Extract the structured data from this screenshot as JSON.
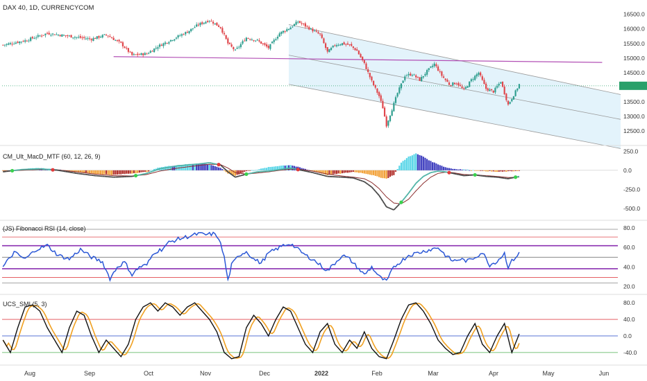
{
  "header": {
    "title": "DAX 40, 1D, CURRENCYCOM"
  },
  "colors": {
    "up": "#2f9e8f",
    "down": "#e0474c",
    "channel_fill": "#e3f3fb",
    "channel_line": "#9a9a9a",
    "support_line": "#b24fb5",
    "macd_line": "#4a4a4a",
    "signal_line": "#8b2d2d",
    "rsi_line": "#2a57d6",
    "smi_line": "#111111",
    "smi_signal": "#f0a020"
  },
  "chart_data": [
    {
      "type": "candlestick",
      "title": "DAX 40, 1D, CURRENCYCOM",
      "ylim": [
        12100,
        16800
      ],
      "y_ticks": [
        "16500.0",
        "16000.0",
        "15500.0",
        "15000.0",
        "14500.0",
        "14000.0",
        "13500.0",
        "13000.0",
        "12500.0"
      ],
      "x_ticks": [
        "Aug",
        "Sep",
        "Oct",
        "Nov",
        "Dec",
        "2022",
        "Feb",
        "Mar",
        "Apr",
        "May",
        "Jun"
      ],
      "anchors": [
        [
          0,
          15450
        ],
        [
          12,
          15600
        ],
        [
          24,
          15850
        ],
        [
          36,
          15750
        ],
        [
          48,
          15650
        ],
        [
          56,
          15800
        ],
        [
          64,
          15500
        ],
        [
          70,
          15100
        ],
        [
          78,
          15150
        ],
        [
          84,
          15400
        ],
        [
          92,
          15650
        ],
        [
          100,
          15900
        ],
        [
          106,
          16150
        ],
        [
          112,
          16300
        ],
        [
          118,
          16050
        ],
        [
          122,
          15500
        ],
        [
          126,
          15250
        ],
        [
          132,
          15700
        ],
        [
          138,
          15600
        ],
        [
          144,
          15350
        ],
        [
          150,
          15850
        ],
        [
          156,
          16050
        ],
        [
          160,
          16250
        ],
        [
          164,
          16100
        ],
        [
          168,
          15950
        ],
        [
          172,
          15800
        ],
        [
          176,
          15200
        ],
        [
          180,
          15450
        ],
        [
          184,
          15500
        ],
        [
          188,
          15450
        ],
        [
          192,
          15250
        ],
        [
          196,
          14800
        ],
        [
          200,
          14200
        ],
        [
          204,
          13700
        ],
        [
          206,
          13300
        ],
        [
          208,
          12700
        ],
        [
          211,
          13250
        ],
        [
          214,
          13800
        ],
        [
          218,
          14400
        ],
        [
          222,
          14450
        ],
        [
          226,
          14250
        ],
        [
          230,
          14550
        ],
        [
          234,
          14800
        ],
        [
          238,
          14400
        ],
        [
          242,
          14100
        ],
        [
          246,
          14150
        ],
        [
          250,
          13900
        ],
        [
          254,
          14250
        ],
        [
          258,
          14500
        ],
        [
          262,
          13950
        ],
        [
          266,
          13850
        ],
        [
          270,
          14200
        ],
        [
          272,
          13800
        ],
        [
          274,
          13400
        ],
        [
          278,
          13850
        ],
        [
          280,
          14100
        ]
      ],
      "current_price": 14050,
      "channel": {
        "start_index": 155,
        "end_index": 335,
        "upper": [
          16150,
          13750
        ],
        "middle": [
          15100,
          12900
        ],
        "lower": [
          14100,
          11900
        ]
      },
      "support_line": {
        "start_index": 60,
        "end_index": 325,
        "values": [
          15050,
          14850
        ]
      },
      "bars_count": 281,
      "x_max_index": 334
    },
    {
      "type": "macd_histogram",
      "title": "CM_Ult_MacD_MTF (60, 12, 26, 9)",
      "ylim": [
        -620,
        290
      ],
      "y_ticks": [
        "250.0",
        "0.0",
        "-250.0",
        "-500.0"
      ],
      "hist_anchors": [
        [
          0,
          -10
        ],
        [
          10,
          15
        ],
        [
          20,
          30
        ],
        [
          30,
          10
        ],
        [
          40,
          -25
        ],
        [
          50,
          -45
        ],
        [
          60,
          -60
        ],
        [
          70,
          -40
        ],
        [
          78,
          -20
        ],
        [
          85,
          40
        ],
        [
          95,
          70
        ],
        [
          105,
          90
        ],
        [
          112,
          80
        ],
        [
          118,
          30
        ],
        [
          122,
          -40
        ],
        [
          126,
          -70
        ],
        [
          132,
          -10
        ],
        [
          138,
          10
        ],
        [
          144,
          40
        ],
        [
          150,
          60
        ],
        [
          156,
          70
        ],
        [
          162,
          30
        ],
        [
          168,
          -10
        ],
        [
          176,
          -60
        ],
        [
          184,
          -40
        ],
        [
          190,
          -20
        ],
        [
          196,
          -40
        ],
        [
          200,
          -60
        ],
        [
          204,
          -90
        ],
        [
          208,
          -110
        ],
        [
          212,
          -60
        ],
        [
          216,
          100
        ],
        [
          220,
          180
        ],
        [
          224,
          220
        ],
        [
          228,
          180
        ],
        [
          232,
          120
        ],
        [
          236,
          80
        ],
        [
          240,
          40
        ],
        [
          244,
          20
        ],
        [
          250,
          10
        ],
        [
          256,
          0
        ],
        [
          262,
          -10
        ],
        [
          268,
          -20
        ],
        [
          274,
          -15
        ],
        [
          280,
          -5
        ]
      ],
      "macd_anchors": [
        [
          0,
          -20
        ],
        [
          10,
          10
        ],
        [
          20,
          20
        ],
        [
          30,
          0
        ],
        [
          40,
          -40
        ],
        [
          50,
          -70
        ],
        [
          60,
          -90
        ],
        [
          70,
          -80
        ],
        [
          78,
          -40
        ],
        [
          85,
          20
        ],
        [
          95,
          60
        ],
        [
          105,
          80
        ],
        [
          112,
          100
        ],
        [
          118,
          70
        ],
        [
          122,
          -20
        ],
        [
          126,
          -90
        ],
        [
          132,
          -50
        ],
        [
          138,
          -20
        ],
        [
          144,
          -10
        ],
        [
          150,
          10
        ],
        [
          156,
          30
        ],
        [
          162,
          0
        ],
        [
          168,
          -30
        ],
        [
          176,
          -80
        ],
        [
          184,
          -90
        ],
        [
          190,
          -100
        ],
        [
          196,
          -150
        ],
        [
          200,
          -220
        ],
        [
          204,
          -330
        ],
        [
          208,
          -480
        ],
        [
          212,
          -520
        ],
        [
          216,
          -420
        ],
        [
          220,
          -300
        ],
        [
          224,
          -170
        ],
        [
          228,
          -80
        ],
        [
          232,
          -30
        ],
        [
          236,
          -10
        ],
        [
          240,
          -20
        ],
        [
          244,
          -40
        ],
        [
          250,
          -70
        ],
        [
          256,
          -60
        ],
        [
          262,
          -80
        ],
        [
          268,
          -90
        ],
        [
          274,
          -110
        ],
        [
          280,
          -80
        ]
      ],
      "signal_anchors": [
        [
          0,
          -10
        ],
        [
          10,
          0
        ],
        [
          20,
          10
        ],
        [
          30,
          5
        ],
        [
          40,
          -20
        ],
        [
          50,
          -50
        ],
        [
          60,
          -70
        ],
        [
          70,
          -75
        ],
        [
          78,
          -55
        ],
        [
          85,
          -10
        ],
        [
          95,
          30
        ],
        [
          105,
          60
        ],
        [
          112,
          80
        ],
        [
          118,
          75
        ],
        [
          122,
          30
        ],
        [
          126,
          -30
        ],
        [
          132,
          -50
        ],
        [
          138,
          -35
        ],
        [
          144,
          -20
        ],
        [
          150,
          0
        ],
        [
          156,
          15
        ],
        [
          162,
          10
        ],
        [
          168,
          -10
        ],
        [
          176,
          -50
        ],
        [
          184,
          -75
        ],
        [
          190,
          -90
        ],
        [
          196,
          -110
        ],
        [
          200,
          -160
        ],
        [
          204,
          -240
        ],
        [
          208,
          -350
        ],
        [
          212,
          -430
        ],
        [
          216,
          -440
        ],
        [
          220,
          -380
        ],
        [
          224,
          -270
        ],
        [
          228,
          -170
        ],
        [
          232,
          -90
        ],
        [
          236,
          -40
        ],
        [
          240,
          -25
        ],
        [
          244,
          -30
        ],
        [
          250,
          -55
        ],
        [
          256,
          -60
        ],
        [
          262,
          -70
        ],
        [
          268,
          -80
        ],
        [
          274,
          -95
        ],
        [
          280,
          -90
        ]
      ]
    },
    {
      "type": "line",
      "title": "(JS) Fibonacci RSI (14, close)",
      "ylim": [
        14,
        85
      ],
      "y_ticks": [
        "80.0",
        "60.0",
        "40.0",
        "20.0"
      ],
      "levels": [
        {
          "value": 78.6,
          "color": "#888888"
        },
        {
          "value": 70.7,
          "color": "#e0474c"
        },
        {
          "value": 61.8,
          "color": "#8a2fb0"
        },
        {
          "value": 50,
          "color": "#777777"
        },
        {
          "value": 38.2,
          "color": "#8a2fb0"
        },
        {
          "value": 29.3,
          "color": "#e0474c"
        },
        {
          "value": 23.6,
          "color": "#888888"
        }
      ],
      "anchors": [
        [
          0,
          40
        ],
        [
          6,
          55
        ],
        [
          12,
          48
        ],
        [
          18,
          58
        ],
        [
          24,
          62
        ],
        [
          30,
          52
        ],
        [
          36,
          48
        ],
        [
          42,
          58
        ],
        [
          48,
          50
        ],
        [
          54,
          45
        ],
        [
          58,
          28
        ],
        [
          62,
          40
        ],
        [
          66,
          45
        ],
        [
          70,
          32
        ],
        [
          74,
          40
        ],
        [
          78,
          42
        ],
        [
          82,
          55
        ],
        [
          86,
          58
        ],
        [
          90,
          65
        ],
        [
          94,
          68
        ],
        [
          98,
          70
        ],
        [
          102,
          72
        ],
        [
          106,
          74
        ],
        [
          110,
          73
        ],
        [
          114,
          74
        ],
        [
          117,
          70
        ],
        [
          120,
          50
        ],
        [
          122,
          26
        ],
        [
          124,
          42
        ],
        [
          128,
          52
        ],
        [
          132,
          56
        ],
        [
          136,
          48
        ],
        [
          140,
          44
        ],
        [
          144,
          54
        ],
        [
          148,
          58
        ],
        [
          152,
          62
        ],
        [
          156,
          64
        ],
        [
          160,
          58
        ],
        [
          164,
          52
        ],
        [
          168,
          48
        ],
        [
          172,
          42
        ],
        [
          176,
          36
        ],
        [
          180,
          44
        ],
        [
          184,
          52
        ],
        [
          188,
          48
        ],
        [
          192,
          40
        ],
        [
          196,
          32
        ],
        [
          200,
          40
        ],
        [
          204,
          30
        ],
        [
          208,
          25
        ],
        [
          212,
          40
        ],
        [
          216,
          46
        ],
        [
          220,
          52
        ],
        [
          224,
          54
        ],
        [
          228,
          56
        ],
        [
          232,
          58
        ],
        [
          236,
          60
        ],
        [
          240,
          52
        ],
        [
          244,
          46
        ],
        [
          248,
          48
        ],
        [
          252,
          46
        ],
        [
          256,
          50
        ],
        [
          260,
          55
        ],
        [
          264,
          42
        ],
        [
          268,
          46
        ],
        [
          272,
          54
        ],
        [
          274,
          40
        ],
        [
          276,
          46
        ],
        [
          280,
          54
        ]
      ]
    },
    {
      "type": "line",
      "title": "UCS_SMI (5, 3)",
      "ylim": [
        -62,
        92
      ],
      "y_ticks": [
        "80.0",
        "40.0",
        "0.0",
        "-40.0"
      ],
      "levels": [
        {
          "value": 40,
          "color": "#e0474c"
        },
        {
          "value": 0,
          "color": "#3f5fcf"
        },
        {
          "value": -40,
          "color": "#4caf50"
        }
      ],
      "anchors": [
        [
          0,
          -10
        ],
        [
          4,
          -40
        ],
        [
          8,
          20
        ],
        [
          12,
          70
        ],
        [
          16,
          75
        ],
        [
          20,
          60
        ],
        [
          24,
          20
        ],
        [
          28,
          -10
        ],
        [
          32,
          -40
        ],
        [
          36,
          20
        ],
        [
          40,
          60
        ],
        [
          44,
          50
        ],
        [
          48,
          0
        ],
        [
          52,
          -40
        ],
        [
          56,
          -10
        ],
        [
          60,
          -30
        ],
        [
          64,
          -50
        ],
        [
          68,
          -20
        ],
        [
          72,
          40
        ],
        [
          76,
          70
        ],
        [
          80,
          80
        ],
        [
          84,
          60
        ],
        [
          88,
          80
        ],
        [
          92,
          70
        ],
        [
          96,
          50
        ],
        [
          100,
          70
        ],
        [
          104,
          80
        ],
        [
          108,
          60
        ],
        [
          112,
          40
        ],
        [
          116,
          10
        ],
        [
          120,
          -40
        ],
        [
          124,
          -55
        ],
        [
          128,
          -50
        ],
        [
          132,
          20
        ],
        [
          136,
          50
        ],
        [
          140,
          30
        ],
        [
          144,
          0
        ],
        [
          148,
          40
        ],
        [
          152,
          70
        ],
        [
          156,
          60
        ],
        [
          160,
          20
        ],
        [
          164,
          -20
        ],
        [
          168,
          -40
        ],
        [
          172,
          10
        ],
        [
          176,
          30
        ],
        [
          180,
          -20
        ],
        [
          184,
          -40
        ],
        [
          188,
          -10
        ],
        [
          192,
          -30
        ],
        [
          196,
          10
        ],
        [
          200,
          -30
        ],
        [
          204,
          -50
        ],
        [
          208,
          -55
        ],
        [
          212,
          -10
        ],
        [
          216,
          40
        ],
        [
          220,
          75
        ],
        [
          224,
          80
        ],
        [
          228,
          60
        ],
        [
          232,
          30
        ],
        [
          236,
          -10
        ],
        [
          240,
          -30
        ],
        [
          244,
          -45
        ],
        [
          248,
          -40
        ],
        [
          252,
          0
        ],
        [
          256,
          30
        ],
        [
          260,
          -20
        ],
        [
          264,
          -40
        ],
        [
          268,
          0
        ],
        [
          272,
          30
        ],
        [
          276,
          -40
        ],
        [
          280,
          5
        ]
      ]
    }
  ]
}
